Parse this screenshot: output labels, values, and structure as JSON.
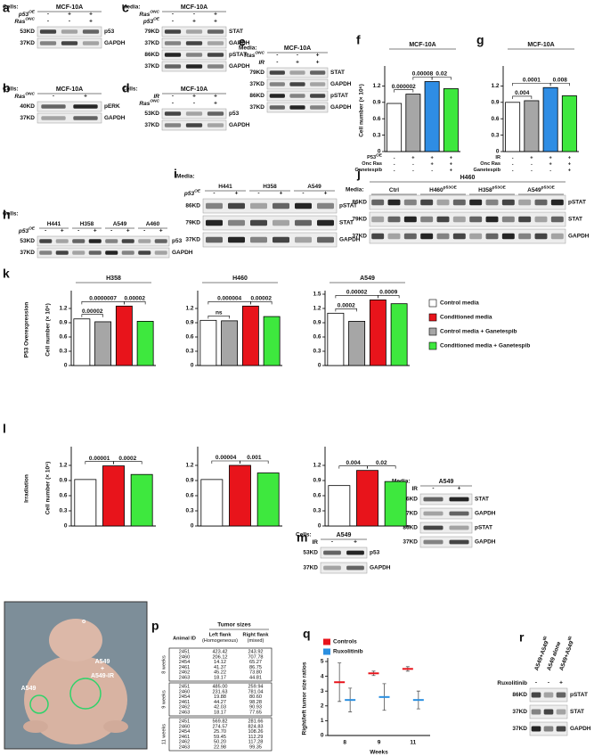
{
  "blots": [
    {
      "letter": "a",
      "title": "MCF-10A",
      "header": "Cells:",
      "rows": [
        {
          "text": "p53",
          "sup": "OE",
          "signs": [
            "-",
            "+",
            "+"
          ]
        },
        {
          "text": "Ras",
          "sup": "ONC",
          "signs": [
            "-",
            "-",
            "+"
          ]
        }
      ],
      "bands": [
        {
          "mw": "53KD",
          "protein": "p53"
        },
        {
          "mw": "37KD",
          "protein": "GAPDH"
        }
      ]
    },
    {
      "letter": "b",
      "title": "MCF-10A",
      "header": "Cells:",
      "rows": [
        {
          "text": "Ras",
          "sup": "ONC",
          "signs": [
            "-",
            "+"
          ]
        }
      ],
      "bands": [
        {
          "mw": "40KD",
          "protein": "pERK"
        },
        {
          "mw": "37KD",
          "protein": "GAPDH"
        }
      ]
    },
    {
      "letter": "c",
      "title": "MCF-10A",
      "header": "Media:",
      "rows": [
        {
          "text": "Ras",
          "sup": "ONC",
          "signs": [
            "-",
            "-",
            "+"
          ]
        },
        {
          "text": "p53",
          "sup": "OE",
          "signs": [
            "-",
            "+",
            "+"
          ]
        }
      ],
      "bands": [
        {
          "mw": "79KD",
          "protein": "STAT"
        },
        {
          "mw": "37KD",
          "protein": "GAPDH"
        },
        {
          "mw": "86KD",
          "protein": "pSTAT"
        },
        {
          "mw": "37KD",
          "protein": "GAPDH"
        }
      ]
    },
    {
      "letter": "d",
      "title": "MCF-10A",
      "header": "Cells:",
      "rows": [
        {
          "text": "IR",
          "signs": [
            "-",
            "+",
            "+"
          ]
        },
        {
          "text": "Ras",
          "sup": "ONC",
          "signs": [
            "-",
            "-",
            "+"
          ]
        }
      ],
      "bands": [
        {
          "mw": "53KD",
          "protein": "p53"
        },
        {
          "mw": "37KD",
          "protein": "GAPDH"
        }
      ]
    },
    {
      "letter": "e",
      "title": "MCF-10A",
      "header": "Media:",
      "rows": [
        {
          "text": "Ras",
          "sup": "ONC",
          "signs": [
            "-",
            "-",
            "+"
          ]
        },
        {
          "text": "IR",
          "signs": [
            "-",
            "+",
            "+"
          ]
        }
      ],
      "bands": [
        {
          "mw": "79KD",
          "protein": "STAT"
        },
        {
          "mw": "37KD",
          "protein": "GAPDH"
        },
        {
          "mw": "86KD",
          "protein": "pSTAT"
        },
        {
          "mw": "37KD",
          "protein": "GAPDH"
        }
      ]
    },
    {
      "letter": "h",
      "header": "Cells:",
      "groups": [
        {
          "text": "H441"
        },
        {
          "text": "H358"
        },
        {
          "text": "A549"
        },
        {
          "text": "A460"
        }
      ],
      "rows": [
        {
          "text": "p53",
          "sup": "OE",
          "signs": [
            "-",
            "+",
            "-",
            "+",
            "-",
            "+",
            "-",
            "+"
          ]
        }
      ],
      "bands": [
        {
          "mw": "53KD",
          "protein": "p53"
        },
        {
          "mw": "37KD",
          "protein": "GAPDH"
        }
      ]
    },
    {
      "letter": "i",
      "header": "Media:",
      "groups": [
        {
          "text": "H441"
        },
        {
          "text": "H358"
        },
        {
          "text": "A549"
        }
      ],
      "rows": [
        {
          "text": "p53",
          "sup": "OE",
          "signs": [
            "-",
            "+",
            "-",
            "+",
            "-",
            "+"
          ]
        }
      ],
      "bands": [
        {
          "mw": "86KD",
          "protein": "pSTAT"
        },
        {
          "mw": "79KD",
          "protein": "STAT"
        },
        {
          "mw": "37KD",
          "protein": "GAPDH"
        }
      ]
    },
    {
      "letter": "j",
      "title": "H460",
      "header": "Media:",
      "groups": [
        {
          "text": "Ctrl"
        },
        {
          "text": "H460",
          "sup": "p53OE"
        },
        {
          "text": "H358",
          "sup": "p53OE"
        },
        {
          "text": "A549",
          "sup": "p53OE"
        }
      ],
      "rows": [],
      "bands": [
        {
          "mw": "86KD",
          "protein": "pSTAT"
        },
        {
          "mw": "79KD",
          "protein": "STAT"
        },
        {
          "mw": "37KD",
          "protein": "GAPDH"
        }
      ]
    },
    {
      "letter": "m",
      "title": "A549",
      "header": "Cells:",
      "rows": [
        {
          "text": "IR",
          "signs": [
            "-",
            "+"
          ]
        }
      ],
      "bands": [
        {
          "mw": "53KD",
          "protein": "p53"
        },
        {
          "mw": "37KD",
          "protein": "GAPDH"
        }
      ]
    },
    {
      "letter": "n",
      "title": "A549",
      "header": "Media:",
      "rows": [
        {
          "text": "IR",
          "signs": [
            "-",
            "+"
          ]
        }
      ],
      "bands": [
        {
          "mw": "86KD",
          "protein": "STAT"
        },
        {
          "mw": "37KD",
          "protein": "GAPDH"
        },
        {
          "mw": "86KD",
          "protein": "pSTAT"
        },
        {
          "mw": "37KD",
          "protein": "GAPDH"
        }
      ]
    },
    {
      "letter": "r",
      "groups": [
        {
          "text": "A549+A549",
          "sup": "IR"
        },
        {
          "text": "A549 alone"
        },
        {
          "text": "A549+A549",
          "sup": "IR"
        }
      ],
      "rows": [
        {
          "text": "Ruxolitinib",
          "signs": [
            "-",
            "-",
            "+"
          ]
        }
      ],
      "bands": [
        {
          "mw": "86KD",
          "protein": "pSTAT"
        },
        {
          "mw": "37KD",
          "protein": "STAT"
        },
        {
          "mw": "37KD",
          "protein": "GAPDH"
        }
      ]
    }
  ],
  "chart_data": [
    {
      "type": "bar",
      "letter": "f",
      "title": "MCF-10A",
      "ylabel": "Cell number (× 10⁶)",
      "values": [
        0.88,
        1.05,
        1.28,
        1.15
      ],
      "colors": [
        "#ffffff",
        "#a6a6a6",
        "#2f8de4",
        "#3ee83e"
      ],
      "ylim": [
        0,
        1.5
      ],
      "yticks": [
        0,
        0.3,
        0.6,
        0.9,
        1.2
      ],
      "comparisons": [
        {
          "bars": [
            0,
            1
          ],
          "label": "0.000002"
        },
        {
          "bars": [
            1,
            2
          ],
          "label": "0.00008"
        },
        {
          "bars": [
            2,
            3
          ],
          "label": "0.02"
        }
      ],
      "conditions": [
        {
          "text": "P53",
          "sup": "OE",
          "signs": [
            "-",
            "+",
            "+",
            "+"
          ]
        },
        {
          "text": "Onc Ras",
          "signs": [
            "-",
            "-",
            "+",
            "+"
          ]
        },
        {
          "text": "Ganetespib",
          "signs": [
            "-",
            "-",
            "-",
            "+"
          ]
        }
      ]
    },
    {
      "type": "bar",
      "letter": "g",
      "title": "MCF-10A",
      "values": [
        0.9,
        0.93,
        1.17,
        1.02
      ],
      "colors": [
        "#ffffff",
        "#a6a6a6",
        "#2f8de4",
        "#3ee83e"
      ],
      "ylim": [
        0,
        1.5
      ],
      "yticks": [
        0,
        0.3,
        0.6,
        0.9,
        1.2
      ],
      "comparisons": [
        {
          "bars": [
            0,
            1
          ],
          "label": "0.004"
        },
        {
          "bars": [
            2,
            3
          ],
          "label": "0.008"
        },
        {
          "bars": [
            0,
            2
          ],
          "label": "0.0001"
        }
      ],
      "conditions": [
        {
          "text": "IR",
          "signs": [
            "-",
            "+",
            "+",
            "+"
          ]
        },
        {
          "text": "Onc Ras",
          "signs": [
            "-",
            "-",
            "+",
            "+"
          ]
        },
        {
          "text": "Ganetespib",
          "signs": [
            "-",
            "-",
            "-",
            "+"
          ]
        }
      ]
    },
    {
      "type": "bar",
      "letter": "k",
      "title": "H358",
      "ylabel": "Cell number (× 10⁶)",
      "values": [
        0.98,
        0.92,
        1.25,
        0.93
      ],
      "colors": [
        "#ffffff",
        "#a6a6a6",
        "#e8141b",
        "#3ee83e"
      ],
      "ylim": [
        0,
        1.5
      ],
      "yticks": [
        0,
        0.3,
        0.6,
        0.9,
        1.2
      ],
      "comparisons": [
        {
          "bars": [
            0,
            1
          ],
          "label": "0.00002"
        },
        {
          "bars": [
            2,
            3
          ],
          "label": "0.00002"
        },
        {
          "bars": [
            0,
            2
          ],
          "label": "0.0000007"
        }
      ]
    },
    {
      "type": "bar",
      "title": "H460",
      "values": [
        0.95,
        0.94,
        1.25,
        1.03
      ],
      "colors": [
        "#ffffff",
        "#a6a6a6",
        "#e8141b",
        "#3ee83e"
      ],
      "ylim": [
        0,
        1.5
      ],
      "yticks": [
        0,
        0.3,
        0.6,
        0.9,
        1.2
      ],
      "comparisons": [
        {
          "bars": [
            0,
            1
          ],
          "label": "ns"
        },
        {
          "bars": [
            2,
            3
          ],
          "label": "0.00002"
        },
        {
          "bars": [
            0,
            2
          ],
          "label": "0.000004"
        }
      ]
    },
    {
      "type": "bar",
      "title": "A549",
      "values": [
        1.1,
        0.93,
        1.38,
        1.3
      ],
      "colors": [
        "#ffffff",
        "#a6a6a6",
        "#e8141b",
        "#3ee83e"
      ],
      "ylim": [
        0,
        1.5
      ],
      "yticks": [
        0,
        0.3,
        0.6,
        0.9,
        1.2,
        1.5
      ],
      "comparisons": [
        {
          "bars": [
            0,
            1
          ],
          "label": "0.0002"
        },
        {
          "bars": [
            2,
            3
          ],
          "label": "0.0009"
        },
        {
          "bars": [
            0,
            2
          ],
          "label": "0.00002"
        }
      ]
    },
    {
      "type": "bar",
      "letter": "l",
      "ylabel": "Cell number (× 10⁶)",
      "values": [
        0.92,
        1.19,
        1.02
      ],
      "colors": [
        "#ffffff",
        "#e8141b",
        "#3ee83e"
      ],
      "ylim": [
        0,
        1.5
      ],
      "yticks": [
        0,
        0.3,
        0.6,
        0.9,
        1.2
      ],
      "comparisons": [
        {
          "bars": [
            0,
            1
          ],
          "label": "0.00001"
        },
        {
          "bars": [
            1,
            2
          ],
          "label": "0.0002"
        }
      ]
    },
    {
      "type": "bar",
      "values": [
        0.92,
        1.2,
        1.05
      ],
      "colors": [
        "#ffffff",
        "#e8141b",
        "#3ee83e"
      ],
      "ylim": [
        0,
        1.5
      ],
      "yticks": [
        0,
        0.3,
        0.6,
        0.9,
        1.2
      ],
      "comparisons": [
        {
          "bars": [
            0,
            1
          ],
          "label": "0.00004"
        },
        {
          "bars": [
            1,
            2
          ],
          "label": "0.001"
        }
      ]
    },
    {
      "type": "bar",
      "values": [
        0.8,
        1.1,
        0.88
      ],
      "colors": [
        "#ffffff",
        "#e8141b",
        "#3ee83e"
      ],
      "ylim": [
        0,
        1.5
      ],
      "yticks": [
        0,
        0.3,
        0.6,
        0.9,
        1.2
      ],
      "comparisons": [
        {
          "bars": [
            0,
            1
          ],
          "label": "0.004"
        },
        {
          "bars": [
            1,
            2
          ],
          "label": "0.02"
        }
      ]
    },
    {
      "type": "dot",
      "letter": "q",
      "ylabel": "Right/left tumor size ratios",
      "xlabel": "Weeks",
      "categories": [
        "8",
        "9",
        "11"
      ],
      "ylim": [
        0,
        5
      ],
      "yticks": [
        0,
        1,
        2,
        3,
        4,
        5
      ],
      "legend": "upper left",
      "series": [
        {
          "name": "Controls",
          "color": "#e8141b",
          "values": [
            3.6,
            4.2,
            4.5
          ],
          "errors": [
            1.3,
            0.15,
            0.15
          ]
        },
        {
          "name": "Ruxolitinib",
          "color": "#2a8fe0",
          "values": [
            2.4,
            2.6,
            2.4
          ],
          "errors": [
            0.8,
            0.9,
            0.6
          ]
        }
      ]
    }
  ],
  "side_labels": [
    "P53 Overexpression",
    "Irradiation"
  ],
  "conditions_legend": [
    {
      "text": "Control media",
      "color": "#ffffff"
    },
    {
      "text": "Conditioned media",
      "color": "#e8141b"
    },
    {
      "text": "Control media + Ganetespib",
      "color": "#a6a6a6"
    },
    {
      "text": "Conditioned media + Ganetespib",
      "color": "#3ee83e"
    }
  ],
  "table": {
    "letter": "p",
    "header": {
      "id": "Animal ID",
      "group": "Tumor sizes",
      "cols": [
        [
          "Left flank",
          "(Homogeneous)"
        ],
        [
          "Right flank",
          "(mixed)"
        ]
      ]
    },
    "groups": [
      {
        "label": "8 weeks",
        "rows": [
          [
            "2451",
            "423.42",
            "243.92"
          ],
          [
            "2460",
            "206.12",
            "707.78"
          ],
          [
            "2454",
            "14.12",
            "65.27"
          ],
          [
            "2461",
            "41.37",
            "86.75"
          ],
          [
            "2462",
            "45.22",
            "73.80"
          ],
          [
            "2463",
            "18.17",
            "44.81"
          ]
        ]
      },
      {
        "label": "9 weeks",
        "rows": [
          [
            "2451",
            "485.00",
            "259.94"
          ],
          [
            "2460",
            "231.63",
            "781.04"
          ],
          [
            "2454",
            "19.88",
            "80.60"
          ],
          [
            "2461",
            "44.27",
            "98.28"
          ],
          [
            "2462",
            "42.03",
            "90.93"
          ],
          [
            "2463",
            "18.17",
            "77.65"
          ]
        ]
      },
      {
        "label": "11 weeks",
        "rows": [
          [
            "2451",
            "569.82",
            "281.66"
          ],
          [
            "2460",
            "274.57",
            "824.83"
          ],
          [
            "2454",
            "25.70",
            "108.26"
          ],
          [
            "2461",
            "59.45",
            "112.29"
          ],
          [
            "2462",
            "50.20",
            "117.28"
          ],
          [
            "2463",
            "22.98",
            "99.35"
          ]
        ]
      }
    ]
  },
  "photo": {
    "letter": "o",
    "labels": [
      [
        "A549"
      ],
      [
        "A549",
        "+",
        "A549-IR"
      ]
    ]
  }
}
